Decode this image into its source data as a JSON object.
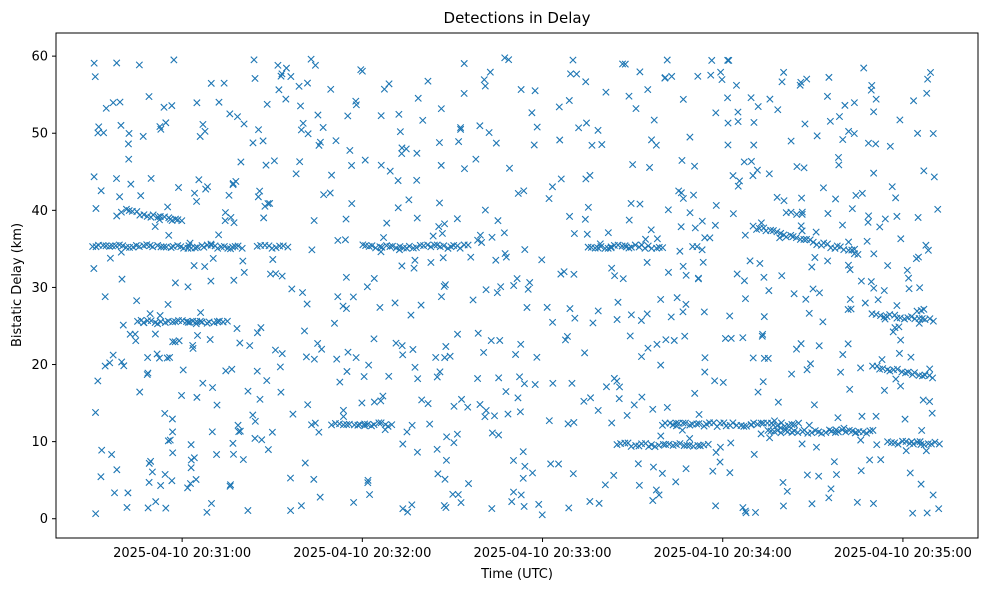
{
  "chart_data": {
    "type": "scatter",
    "title": "Detections in Delay",
    "xlabel": "Time (UTC)",
    "ylabel": "Bistatic Delay (km)",
    "marker": "x",
    "color": "#1f77b4",
    "grid": false,
    "x_ticks": [
      "2025-04-10 20:31:00",
      "2025-04-10 20:32:00",
      "2025-04-10 20:33:00",
      "2025-04-10 20:34:00",
      "2025-04-10 20:35:00"
    ],
    "y_ticks": [
      0,
      10,
      20,
      30,
      40,
      50,
      60
    ],
    "xlim": [
      "2025-04-10 20:30:18",
      "2025-04-10 20:35:25"
    ],
    "ylim": [
      -2.5,
      63
    ],
    "x_start": "2025-04-10 20:30:30",
    "x_end": "2025-04-10 20:35:12",
    "y_range": [
      0.5,
      59.8
    ],
    "tracks": [
      {
        "x_range": [
          "2025-04-10 20:30:30",
          "2025-04-10 20:31:20"
        ],
        "y": 35.3
      },
      {
        "x_range": [
          "2025-04-10 20:31:25",
          "2025-04-10 20:31:35"
        ],
        "y": 35.3
      },
      {
        "x_range": [
          "2025-04-10 20:32:00",
          "2025-04-10 20:32:35"
        ],
        "y": 35.3
      },
      {
        "x_range": [
          "2025-04-10 20:33:15",
          "2025-04-10 20:33:40"
        ],
        "y": 35.3
      },
      {
        "x_range": [
          "2025-04-10 20:30:40",
          "2025-04-10 20:31:00"
        ],
        "y": [
          40.0,
          38.5
        ]
      },
      {
        "x_range": [
          "2025-04-10 20:30:45",
          "2025-04-10 20:31:15"
        ],
        "y": 25.5
      },
      {
        "x_range": [
          "2025-04-10 20:31:50",
          "2025-04-10 20:32:10"
        ],
        "y": 12.2
      },
      {
        "x_range": [
          "2025-04-10 20:33:25",
          "2025-04-10 20:33:55"
        ],
        "y": 9.6
      },
      {
        "x_range": [
          "2025-04-10 20:33:40",
          "2025-04-10 20:34:25"
        ],
        "y": 12.2
      },
      {
        "x_range": [
          "2025-04-10 20:34:15",
          "2025-04-10 20:34:50"
        ],
        "y": 11.3
      },
      {
        "x_range": [
          "2025-04-10 20:34:10",
          "2025-04-10 20:34:45"
        ],
        "y": [
          37.8,
          34.5
        ]
      },
      {
        "x_range": [
          "2025-04-10 20:34:50",
          "2025-04-10 20:35:10"
        ],
        "y": [
          26.5,
          25.8
        ]
      },
      {
        "x_range": [
          "2025-04-10 20:34:50",
          "2025-04-10 20:35:10"
        ],
        "y": [
          19.8,
          18.3
        ]
      },
      {
        "x_range": [
          "2025-04-10 20:34:55",
          "2025-04-10 20:35:12"
        ],
        "y": 9.8
      }
    ]
  }
}
